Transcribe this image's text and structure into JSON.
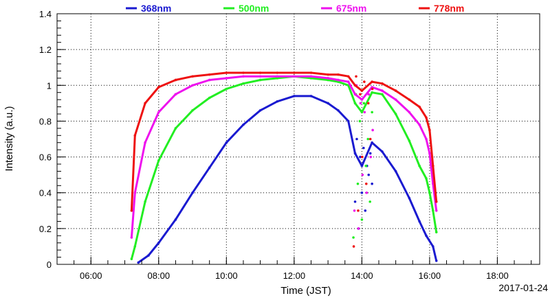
{
  "chart_data": {
    "type": "scatter",
    "title": "",
    "xlabel": "Time (JST)",
    "ylabel": "Intensity (a.u.)",
    "date_label": "2017-01-24",
    "x_unit": "hours",
    "xlim": [
      5.0,
      19.25
    ],
    "ylim": [
      0,
      1.4
    ],
    "x_ticks": [
      6,
      8,
      10,
      12,
      14,
      16,
      18
    ],
    "x_tick_labels": [
      "06:00",
      "08:00",
      "10:00",
      "12:00",
      "14:00",
      "16:00",
      "18:00"
    ],
    "y_ticks": [
      0,
      0.2,
      0.4,
      0.6,
      0.8,
      1.0,
      1.2,
      1.4
    ],
    "y_tick_labels": [
      "0",
      "0.2",
      "0.4",
      "0.6",
      "0.8",
      "1",
      "1.2",
      "1.4"
    ],
    "grid": true,
    "legend_position": "top",
    "series": [
      {
        "name": "368nm",
        "color": "#1a1ad0",
        "x": [
          7.4,
          7.7,
          8.0,
          8.5,
          9.0,
          9.5,
          10.0,
          10.5,
          11.0,
          11.5,
          12.0,
          12.5,
          13.0,
          13.3,
          13.6,
          13.8,
          14.0,
          14.3,
          14.6,
          15.0,
          15.4,
          15.7,
          15.9,
          16.1,
          16.2
        ],
        "y": [
          0.01,
          0.05,
          0.12,
          0.25,
          0.4,
          0.54,
          0.68,
          0.78,
          0.86,
          0.91,
          0.94,
          0.94,
          0.9,
          0.86,
          0.8,
          0.62,
          0.55,
          0.68,
          0.63,
          0.52,
          0.37,
          0.24,
          0.16,
          0.1,
          0.02
        ],
        "scatter_x": [
          13.8,
          13.85,
          13.9,
          13.95,
          14.0,
          14.05,
          14.1,
          14.15,
          14.2,
          14.25,
          14.3
        ],
        "scatter_y": [
          0.35,
          0.7,
          0.2,
          0.6,
          0.4,
          0.65,
          0.3,
          0.55,
          0.5,
          0.62,
          0.45
        ]
      },
      {
        "name": "500nm",
        "color": "#22ee22",
        "x": [
          7.2,
          7.3,
          7.6,
          8.0,
          8.5,
          9.0,
          9.5,
          10.0,
          10.5,
          11.0,
          11.5,
          12.0,
          12.5,
          13.0,
          13.3,
          13.6,
          13.8,
          14.0,
          14.3,
          14.6,
          15.0,
          15.4,
          15.7,
          15.9,
          16.0,
          16.1,
          16.2
        ],
        "y": [
          0.03,
          0.1,
          0.35,
          0.58,
          0.76,
          0.86,
          0.93,
          0.98,
          1.01,
          1.03,
          1.04,
          1.05,
          1.04,
          1.03,
          1.02,
          1.0,
          0.9,
          0.85,
          0.96,
          0.95,
          0.84,
          0.69,
          0.55,
          0.48,
          0.4,
          0.3,
          0.18
        ],
        "scatter_x": [
          13.75,
          13.82,
          13.88,
          13.94,
          14.0,
          14.06,
          14.12,
          14.18,
          14.24,
          14.3
        ],
        "scatter_y": [
          0.15,
          0.95,
          0.45,
          0.8,
          0.25,
          0.9,
          0.55,
          0.7,
          0.35,
          0.85
        ]
      },
      {
        "name": "675nm",
        "color": "#ee11ee",
        "x": [
          7.2,
          7.3,
          7.6,
          8.0,
          8.5,
          9.0,
          9.5,
          10.0,
          10.5,
          11.0,
          11.5,
          12.0,
          12.5,
          13.0,
          13.3,
          13.6,
          13.8,
          14.0,
          14.3,
          14.6,
          15.0,
          15.4,
          15.7,
          15.9,
          16.0,
          16.1,
          16.2
        ],
        "y": [
          0.15,
          0.4,
          0.68,
          0.85,
          0.95,
          1.0,
          1.03,
          1.04,
          1.05,
          1.05,
          1.05,
          1.05,
          1.05,
          1.04,
          1.03,
          1.02,
          0.95,
          0.92,
          0.99,
          0.97,
          0.92,
          0.85,
          0.78,
          0.7,
          0.62,
          0.45,
          0.3
        ],
        "scatter_x": [
          13.78,
          13.84,
          13.9,
          13.96,
          14.02,
          14.08,
          14.14,
          14.2,
          14.26,
          14.32
        ],
        "scatter_y": [
          0.3,
          1.0,
          0.2,
          0.9,
          0.5,
          0.85,
          0.4,
          0.95,
          0.6,
          0.75
        ]
      },
      {
        "name": "778nm",
        "color": "#ee1111",
        "x": [
          7.2,
          7.3,
          7.6,
          8.0,
          8.5,
          9.0,
          9.5,
          10.0,
          10.5,
          11.0,
          11.5,
          12.0,
          12.5,
          13.0,
          13.3,
          13.6,
          13.8,
          14.0,
          14.3,
          14.6,
          15.0,
          15.4,
          15.7,
          15.9,
          16.0,
          16.1,
          16.2
        ],
        "y": [
          0.3,
          0.72,
          0.9,
          0.99,
          1.03,
          1.05,
          1.06,
          1.07,
          1.07,
          1.07,
          1.07,
          1.07,
          1.07,
          1.06,
          1.06,
          1.05,
          1.0,
          0.97,
          1.02,
          1.01,
          0.97,
          0.92,
          0.88,
          0.82,
          0.75,
          0.55,
          0.35
        ],
        "scatter_x": [
          13.76,
          13.83,
          13.89,
          13.95,
          14.01,
          14.07,
          14.13,
          14.19,
          14.25,
          14.31
        ],
        "scatter_y": [
          0.1,
          1.05,
          0.3,
          0.95,
          0.6,
          1.02,
          0.45,
          0.9,
          0.7,
          0.98
        ]
      }
    ]
  }
}
